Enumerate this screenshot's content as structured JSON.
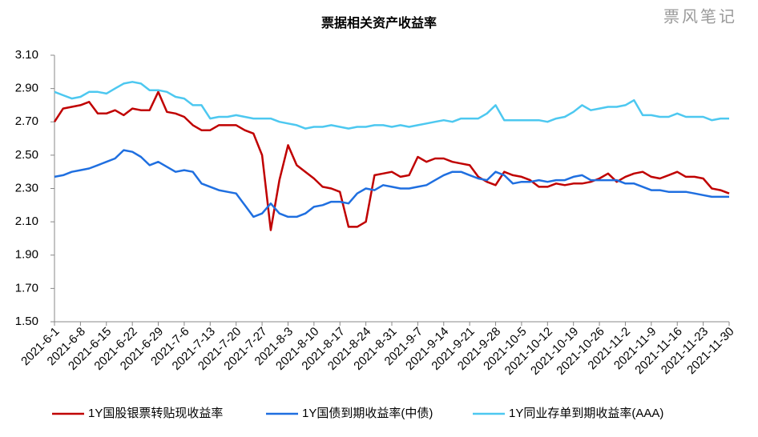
{
  "chart_data": {
    "type": "line",
    "title": "票据相关资产收益率",
    "watermark": "票风笔记",
    "categories": [
      "2021-6-1",
      null,
      null,
      "2021-6-8",
      null,
      null,
      "2021-6-15",
      null,
      null,
      "2021-6-22",
      null,
      null,
      "2021-6-29",
      null,
      null,
      "2021-7-6",
      null,
      null,
      "2021-7-13",
      null,
      null,
      "2021-7-20",
      null,
      null,
      "2021-7-27",
      null,
      null,
      "2021-8-3",
      null,
      null,
      "2021-8-10",
      null,
      null,
      "2021-8-17",
      null,
      null,
      "2021-8-24",
      null,
      null,
      "2021-8-31",
      null,
      null,
      "2021-9-7",
      null,
      null,
      "2021-9-14",
      null,
      null,
      "2021-9-21",
      null,
      null,
      "2021-9-28",
      null,
      null,
      "2021-10-5",
      null,
      null,
      "2021-10-12",
      null,
      null,
      "2021-10-19",
      null,
      null,
      "2021-10-26",
      null,
      null,
      "2021-11-2",
      null,
      null,
      "2021-11-9",
      null,
      null,
      "2021-11-16",
      null,
      null,
      "2021-11-23",
      null,
      null,
      "2021-11-30"
    ],
    "series": [
      {
        "name": "1Y国股银票转贴现收益率",
        "color": "#c00000",
        "values": [
          2.7,
          2.78,
          2.79,
          2.8,
          2.82,
          2.75,
          2.75,
          2.77,
          2.74,
          2.78,
          2.77,
          2.77,
          2.88,
          2.76,
          2.75,
          2.73,
          2.68,
          2.65,
          2.65,
          2.68,
          2.68,
          2.68,
          2.65,
          2.63,
          2.5,
          2.05,
          2.35,
          2.56,
          2.44,
          2.4,
          2.36,
          2.31,
          2.3,
          2.28,
          2.07,
          2.07,
          2.1,
          2.38,
          2.39,
          2.4,
          2.37,
          2.38,
          2.49,
          2.46,
          2.48,
          2.48,
          2.46,
          2.45,
          2.44,
          2.37,
          2.34,
          2.32,
          2.4,
          2.38,
          2.37,
          2.35,
          2.31,
          2.31,
          2.33,
          2.32,
          2.33,
          2.33,
          2.34,
          2.36,
          2.39,
          2.34,
          2.37,
          2.39,
          2.4,
          2.37,
          2.36,
          2.38,
          2.4,
          2.37,
          2.37,
          2.36,
          2.3,
          2.29,
          2.27
        ]
      },
      {
        "name": "1Y国债到期收益率(中债)",
        "color": "#1f6fe0",
        "values": [
          2.37,
          2.38,
          2.4,
          2.41,
          2.42,
          2.44,
          2.46,
          2.48,
          2.53,
          2.52,
          2.49,
          2.44,
          2.46,
          2.43,
          2.4,
          2.41,
          2.4,
          2.33,
          2.31,
          2.29,
          2.28,
          2.27,
          2.2,
          2.13,
          2.15,
          2.21,
          2.15,
          2.13,
          2.13,
          2.15,
          2.19,
          2.2,
          2.22,
          2.22,
          2.21,
          2.27,
          2.3,
          2.29,
          2.32,
          2.31,
          2.3,
          2.3,
          2.31,
          2.32,
          2.35,
          2.38,
          2.4,
          2.4,
          2.38,
          2.36,
          2.35,
          2.4,
          2.38,
          2.33,
          2.34,
          2.34,
          2.35,
          2.34,
          2.35,
          2.35,
          2.37,
          2.38,
          2.35,
          2.35,
          2.35,
          2.35,
          2.33,
          2.33,
          2.31,
          2.29,
          2.29,
          2.28,
          2.28,
          2.28,
          2.27,
          2.26,
          2.25,
          2.25,
          2.25
        ]
      },
      {
        "name": "1Y同业存单到期收益率(AAA)",
        "color": "#4dc8f0",
        "values": [
          2.88,
          2.86,
          2.84,
          2.85,
          2.88,
          2.88,
          2.87,
          2.9,
          2.93,
          2.94,
          2.93,
          2.89,
          2.89,
          2.88,
          2.85,
          2.84,
          2.8,
          2.8,
          2.72,
          2.73,
          2.73,
          2.74,
          2.73,
          2.72,
          2.72,
          2.72,
          2.7,
          2.69,
          2.68,
          2.66,
          2.67,
          2.67,
          2.68,
          2.67,
          2.66,
          2.67,
          2.67,
          2.68,
          2.68,
          2.67,
          2.68,
          2.67,
          2.68,
          2.69,
          2.7,
          2.71,
          2.7,
          2.72,
          2.72,
          2.72,
          2.75,
          2.8,
          2.71,
          2.71,
          2.71,
          2.71,
          2.71,
          2.7,
          2.72,
          2.73,
          2.76,
          2.8,
          2.77,
          2.78,
          2.79,
          2.79,
          2.8,
          2.83,
          2.74,
          2.74,
          2.73,
          2.73,
          2.75,
          2.73,
          2.73,
          2.73,
          2.71,
          2.72,
          2.72
        ]
      }
    ],
    "ylim": [
      1.5,
      3.1
    ],
    "yticks": [
      {
        "value": 1.5,
        "label": "1.50"
      },
      {
        "value": 1.7,
        "label": "1.70"
      },
      {
        "value": 1.9,
        "label": "1.90"
      },
      {
        "value": 2.1,
        "label": "2.10"
      },
      {
        "value": 2.3,
        "label": "2.30"
      },
      {
        "value": 2.5,
        "label": "2.50"
      },
      {
        "value": 2.7,
        "label": "2.70"
      },
      {
        "value": 2.9,
        "label": "2.90"
      },
      {
        "value": 3.1,
        "label": "3.10"
      }
    ],
    "grid": false,
    "legend": "bottom"
  }
}
